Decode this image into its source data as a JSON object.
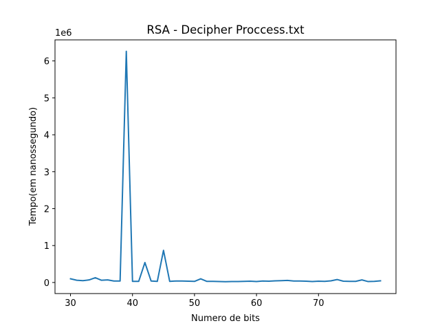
{
  "chart_data": {
    "type": "line",
    "title": "RSA - Decipher Proccess.txt",
    "xlabel": "Numero de bits",
    "ylabel": "Tempo(em nanossegundo)",
    "y_offset_label": "1e6",
    "xlim": [
      27.5,
      82.5
    ],
    "ylim": [
      -300000,
      6570000
    ],
    "xticks": [
      30,
      40,
      50,
      60,
      70
    ],
    "yticks": [
      0,
      1000000,
      2000000,
      3000000,
      4000000,
      5000000,
      6000000
    ],
    "ytick_labels": [
      "0",
      "1",
      "2",
      "3",
      "4",
      "5",
      "6"
    ],
    "grid": false,
    "series": [
      {
        "color": "#1f77b4",
        "x": [
          30,
          31,
          32,
          33,
          34,
          35,
          36,
          37,
          38,
          39,
          40,
          41,
          42,
          43,
          44,
          45,
          46,
          47,
          48,
          49,
          50,
          51,
          52,
          53,
          54,
          55,
          56,
          57,
          58,
          59,
          60,
          61,
          62,
          63,
          64,
          65,
          66,
          67,
          68,
          69,
          70,
          71,
          72,
          73,
          74,
          75,
          76,
          77,
          78,
          79,
          80
        ],
        "y": [
          100000,
          60000,
          50000,
          70000,
          130000,
          60000,
          70000,
          40000,
          40000,
          6260000,
          30000,
          30000,
          540000,
          40000,
          30000,
          870000,
          30000,
          40000,
          40000,
          35000,
          30000,
          100000,
          30000,
          30000,
          25000,
          20000,
          25000,
          25000,
          30000,
          35000,
          25000,
          40000,
          35000,
          45000,
          50000,
          55000,
          40000,
          40000,
          35000,
          25000,
          35000,
          30000,
          45000,
          80000,
          35000,
          30000,
          30000,
          70000,
          25000,
          30000,
          45000
        ]
      }
    ]
  }
}
